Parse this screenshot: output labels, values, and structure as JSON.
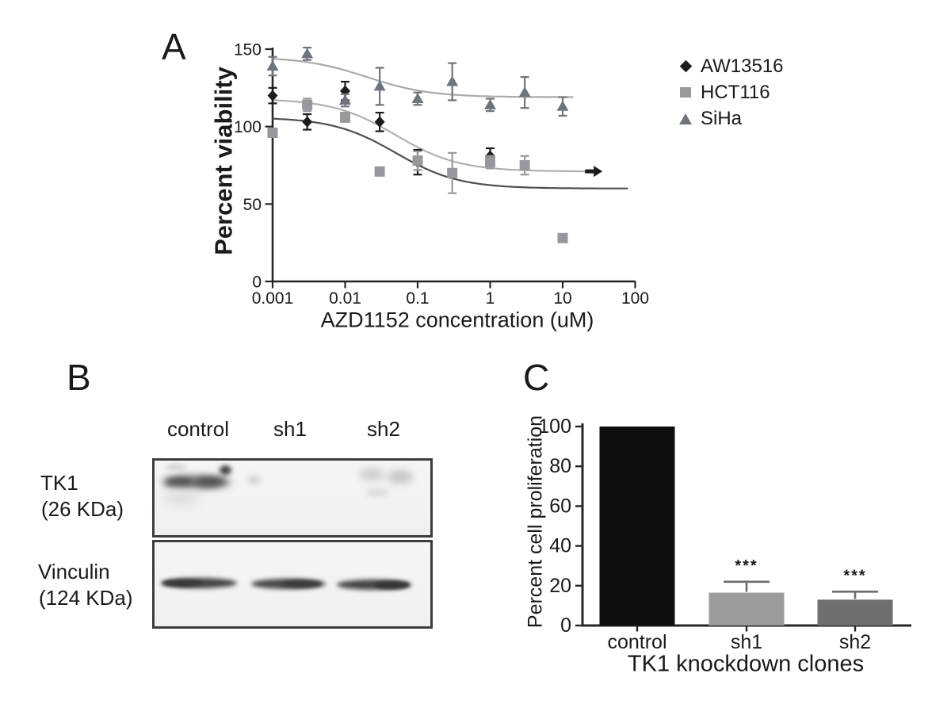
{
  "figure": {
    "panels": {
      "a": "A",
      "b": "B",
      "c": "C"
    }
  },
  "chart_data": [
    {
      "id": "panel_a_dose_response",
      "type": "scatter",
      "title": "",
      "xlabel": "AZD1152 concentration (uM)",
      "ylabel": "Percent viability",
      "x_scale": "log",
      "xlim": [
        0.001,
        100
      ],
      "ylim": [
        0,
        150
      ],
      "x_ticks": [
        0.001,
        0.01,
        0.1,
        1,
        10,
        100
      ],
      "x_tick_labels": [
        "0.001",
        "0.01",
        "0.1",
        "1",
        "10",
        "100"
      ],
      "y_ticks": [
        0,
        50,
        100,
        150
      ],
      "grid": false,
      "legend_position": "right-outside",
      "series": [
        {
          "name": "AW13516",
          "marker": "diamond",
          "color": "#1c1c1c",
          "points": [
            {
              "x": 0.001,
              "y": 120,
              "err": 5
            },
            {
              "x": 0.003,
              "y": 103,
              "err": 5
            },
            {
              "x": 0.01,
              "y": 123,
              "err": 6
            },
            {
              "x": 0.03,
              "y": 103,
              "err": 6
            },
            {
              "x": 0.1,
              "y": 77,
              "err": 8
            },
            {
              "x": 1,
              "y": 81,
              "err": 5
            }
          ]
        },
        {
          "name": "HCT116",
          "marker": "square",
          "color": "#96989b",
          "points": [
            {
              "x": 0.001,
              "y": 96,
              "err": 0
            },
            {
              "x": 0.003,
              "y": 114,
              "err": 4
            },
            {
              "x": 0.01,
              "y": 106,
              "err": 3
            },
            {
              "x": 0.03,
              "y": 71,
              "err": 0
            },
            {
              "x": 0.1,
              "y": 78,
              "err": 6
            },
            {
              "x": 0.3,
              "y": 70,
              "err": 13
            },
            {
              "x": 1,
              "y": 77,
              "err": 4
            },
            {
              "x": 3,
              "y": 75,
              "err": 6
            },
            {
              "x": 10,
              "y": 28,
              "err": 0
            }
          ]
        },
        {
          "name": "SiHa",
          "marker": "triangle",
          "color": "#6e747a",
          "points": [
            {
              "x": 0.001,
              "y": 139,
              "err": 6
            },
            {
              "x": 0.003,
              "y": 147,
              "err": 4
            },
            {
              "x": 0.01,
              "y": 117,
              "err": 4
            },
            {
              "x": 0.03,
              "y": 126,
              "err": 12
            },
            {
              "x": 0.1,
              "y": 118,
              "err": 4
            },
            {
              "x": 0.3,
              "y": 129,
              "err": 12
            },
            {
              "x": 1,
              "y": 114,
              "err": 4
            },
            {
              "x": 3,
              "y": 122,
              "err": 10
            },
            {
              "x": 10,
              "y": 113,
              "err": 6
            }
          ]
        }
      ],
      "fit_curves": [
        {
          "series": "SiHa",
          "top": 145,
          "bottom": 119,
          "ec50": 0.02,
          "hill": 1,
          "x_end": 15,
          "color": "#a9a9a9",
          "end_arrow": false
        },
        {
          "series": "AW13516",
          "top": 118,
          "bottom": 71,
          "ec50": 0.05,
          "hill": 1,
          "x_end": 30,
          "color": "#b0b0b0",
          "end_arrow": true
        },
        {
          "series": "HCT116",
          "top": 106,
          "bottom": 60,
          "ec50": 0.05,
          "hill": 1,
          "x_end": 80,
          "color": "#4f4f4f",
          "end_arrow": false
        }
      ]
    },
    {
      "id": "panel_c_proliferation",
      "type": "bar",
      "title": "",
      "xlabel": "TK1 knockdown clones",
      "ylabel": "Percent cell proliferation",
      "categories": [
        "control",
        "sh1",
        "sh2"
      ],
      "values": [
        100,
        16.5,
        13
      ],
      "errors": [
        0,
        5.5,
        4
      ],
      "bar_colors": [
        "#0e0e0e",
        "#9b9b9b",
        "#6f6f6f"
      ],
      "significance": [
        "",
        "***",
        "***"
      ],
      "y_ticks": [
        0,
        20,
        40,
        60,
        80,
        100
      ],
      "ylim": [
        0,
        100
      ],
      "grid": false
    }
  ],
  "western_blot": {
    "lane_labels": [
      "control",
      "sh1",
      "sh2"
    ],
    "rows": [
      {
        "protein": "TK1",
        "size_label": "(26 KDa)"
      },
      {
        "protein": "Vinculin",
        "size_label": "(124 KDa)"
      }
    ]
  }
}
